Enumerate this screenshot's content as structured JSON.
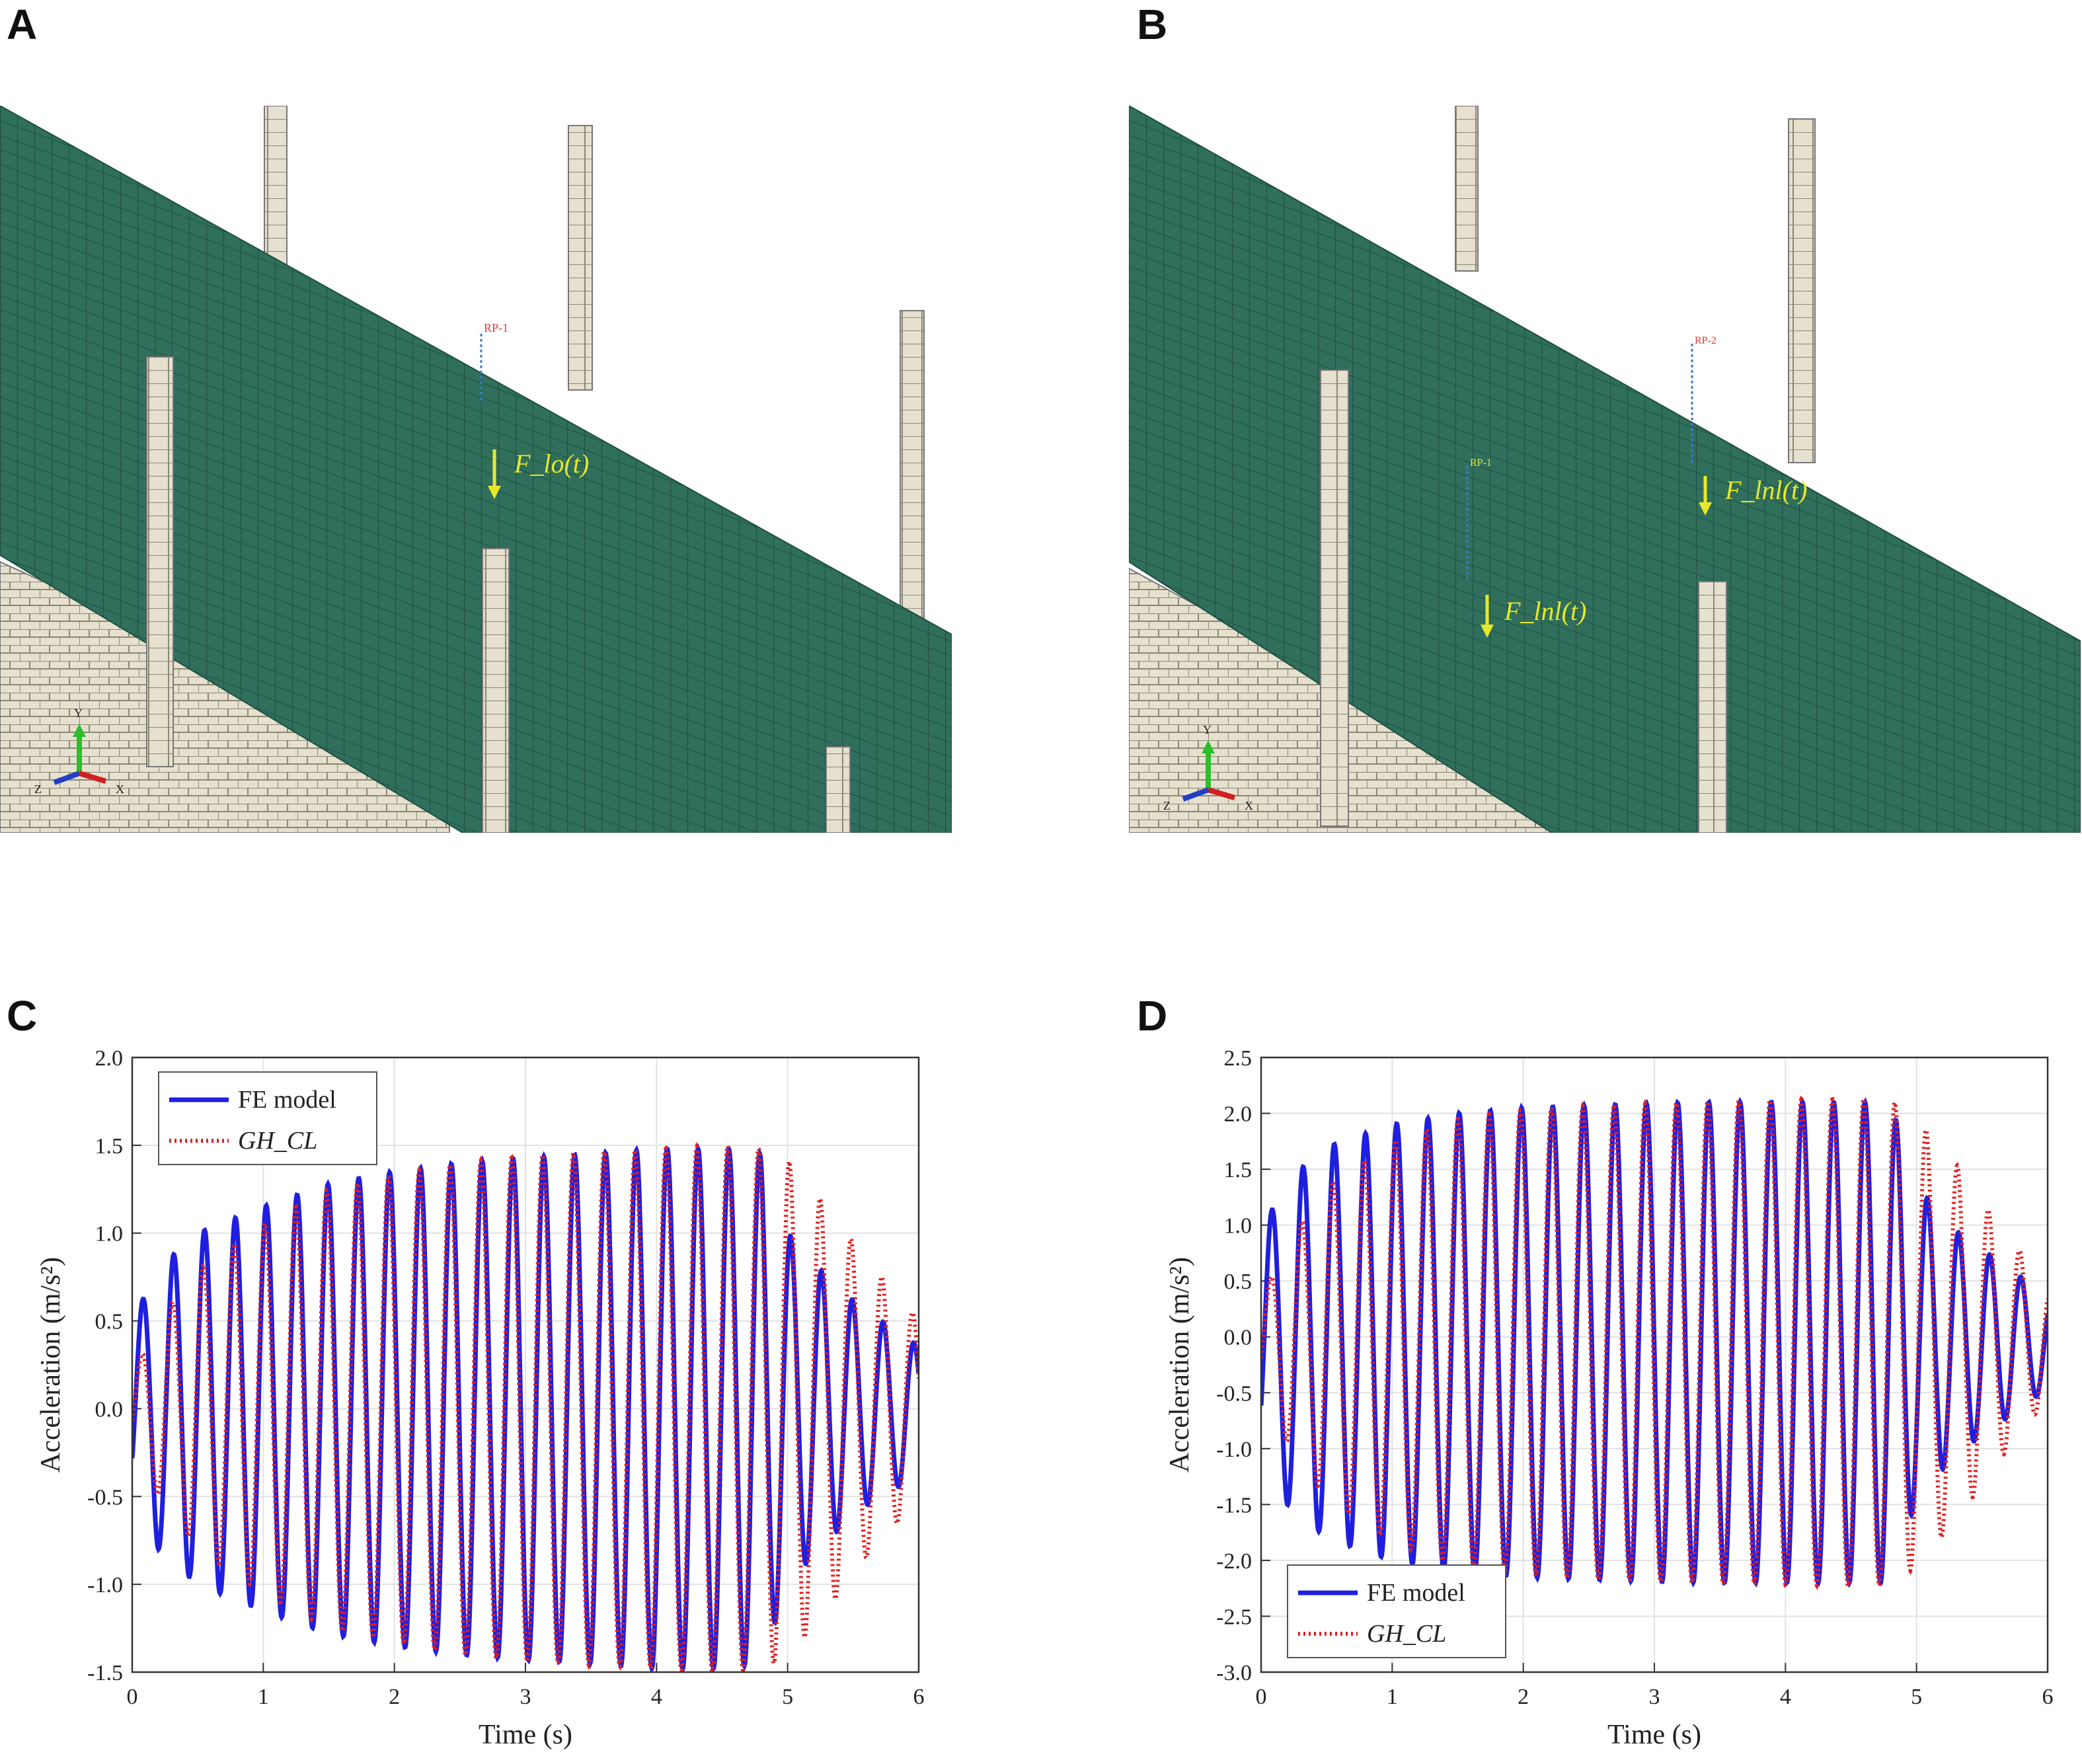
{
  "panels": {
    "a": "A",
    "b": "B",
    "c": "C",
    "d": "D"
  },
  "colors": {
    "slab": "#2f6f5c",
    "slab_grid": "#1f4f40",
    "masonry": "#e6e0cf",
    "masonry_line": "#8c8674",
    "load_label": "#e8e82a",
    "ref_point": "#e23a3a",
    "fe_series": "#1f1fe0",
    "gh_series": "#e02020"
  },
  "scene_a": {
    "load_label": "F_lo(t)",
    "ref_label": "RP-1",
    "axes": {
      "y": "Y",
      "z": "Z",
      "x": "X"
    }
  },
  "scene_b": {
    "load_label_1": "F_lnl(t)",
    "load_label_2": "F_lnl(t)",
    "ref_label_1": "RP-1",
    "ref_label_2": "RP-2",
    "axes": {
      "y": "Y",
      "z": "Z",
      "x": "X"
    }
  },
  "chart_data": [
    {
      "panel": "C",
      "type": "line",
      "xlabel": "Time (s)",
      "ylabel": "Acceleration (m/s²)",
      "xlim": [
        0,
        6
      ],
      "ylim": [
        -1.5,
        2.0
      ],
      "xticks": [
        0,
        1,
        2,
        3,
        4,
        5,
        6
      ],
      "yticks": [
        -1.5,
        -1.0,
        -0.5,
        0.0,
        0.5,
        1.0,
        1.5,
        2.0
      ],
      "ytick_labels": [
        "-1.5",
        "-1.0",
        "-0.5",
        "0.0",
        "0.5",
        "1.0",
        "1.5",
        "2.0"
      ],
      "grid": true,
      "legend": "top-left",
      "frequency_hz": 4.25,
      "envelope_t": [
        0,
        0.2,
        0.5,
        1.0,
        1.5,
        2.0,
        2.5,
        3.0,
        3.5,
        4.0,
        4.5,
        4.8,
        5.0,
        5.3,
        5.6,
        5.9,
        6.0
      ],
      "envelope_fe": [
        0.5,
        0.8,
        1.0,
        1.15,
        1.28,
        1.35,
        1.4,
        1.43,
        1.45,
        1.48,
        1.48,
        1.45,
        1.0,
        0.75,
        0.55,
        0.42,
        0.35
      ],
      "envelope_gh": [
        0.2,
        0.5,
        0.8,
        1.05,
        1.25,
        1.33,
        1.4,
        1.44,
        1.46,
        1.48,
        1.5,
        1.48,
        1.42,
        1.15,
        0.85,
        0.6,
        0.5
      ],
      "offset_fe": 0.0,
      "offset_gh": 0.0,
      "series": [
        {
          "name": "FE model",
          "style": "solid"
        },
        {
          "name": "GH_CL",
          "style": "dotted"
        }
      ]
    },
    {
      "panel": "D",
      "type": "line",
      "xlabel": "Time (s)",
      "ylabel": "Acceleration (m/s²)",
      "xlim": [
        0,
        6
      ],
      "ylim": [
        -3.0,
        2.5
      ],
      "xticks": [
        0,
        1,
        2,
        3,
        4,
        5,
        6
      ],
      "yticks": [
        -3.0,
        -2.5,
        -2.0,
        -1.5,
        -1.0,
        -0.5,
        0.0,
        0.5,
        1.0,
        1.5,
        2.0,
        2.5
      ],
      "ytick_labels": [
        "-3.0",
        "-2.5",
        "-2.0",
        "-1.5",
        "-1.0",
        "-0.5",
        "0.0",
        "0.5",
        "1.0",
        "1.5",
        "2.0",
        "2.5"
      ],
      "grid": true,
      "legend": "bottom-left",
      "frequency_hz": 4.2,
      "envelope_t": [
        0,
        0.2,
        0.5,
        1.0,
        1.5,
        2.0,
        2.5,
        3.0,
        3.5,
        4.0,
        4.5,
        4.8,
        5.0,
        5.3,
        5.6,
        5.9,
        6.0
      ],
      "envelope_fe": [
        1.0,
        1.45,
        1.75,
        1.95,
        2.05,
        2.1,
        2.12,
        2.14,
        2.15,
        2.15,
        2.15,
        2.15,
        1.4,
        1.0,
        0.75,
        0.5,
        0.4
      ],
      "envelope_gh": [
        0.4,
        0.9,
        1.4,
        1.8,
        2.0,
        2.08,
        2.12,
        2.14,
        2.16,
        2.17,
        2.18,
        2.18,
        2.0,
        1.6,
        1.1,
        0.65,
        0.5
      ],
      "offset_fe": -0.05,
      "offset_gh": -0.05,
      "series": [
        {
          "name": "FE model",
          "style": "solid"
        },
        {
          "name": "GH_CL",
          "style": "dotted"
        }
      ]
    }
  ]
}
